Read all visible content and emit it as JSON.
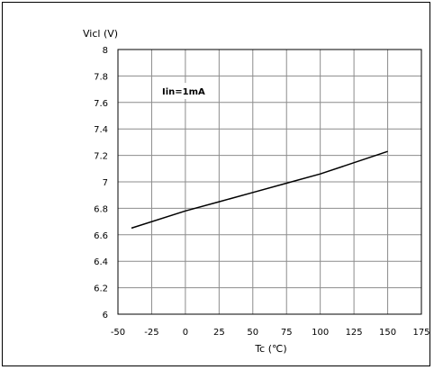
{
  "chart_data": {
    "type": "line",
    "xlabel": "Tc (℃)",
    "ylabel": "Vicl (V)",
    "xlim": [
      -50,
      175
    ],
    "ylim": [
      6,
      8
    ],
    "x_ticks": [
      "-50",
      "-25",
      "0",
      "25",
      "50",
      "75",
      "100",
      "125",
      "150",
      "175"
    ],
    "y_ticks": [
      "6",
      "6.2",
      "6.4",
      "6.6",
      "6.8",
      "7",
      "7.2",
      "7.4",
      "7.6",
      "7.8",
      "8"
    ],
    "x_tick_values": [
      -50,
      -25,
      0,
      25,
      50,
      75,
      100,
      125,
      150,
      175
    ],
    "y_tick_values": [
      6,
      6.2,
      6.4,
      6.6,
      6.8,
      7,
      7.2,
      7.4,
      7.6,
      7.8,
      8
    ],
    "grid": true,
    "series": [
      {
        "x": [
          -40,
          0,
          25,
          50,
          75,
          100,
          150
        ],
        "y": [
          6.65,
          6.78,
          6.85,
          6.92,
          6.99,
          7.06,
          7.23
        ],
        "color": "#000000"
      }
    ],
    "annotations": [
      {
        "text": "Iin=1mA"
      }
    ]
  }
}
